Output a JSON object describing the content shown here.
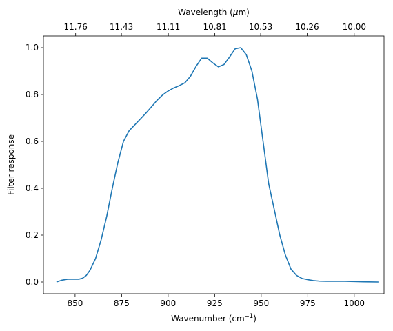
{
  "chart_data": {
    "type": "line",
    "xlabel": "Wavenumber (cm",
    "xlabel_sup": "−1",
    "xlabel_end": ")",
    "ylabel": "Filter response",
    "top_label": "Wavelength (",
    "top_label_mu": "μ",
    "top_label_end": "m)",
    "xlim": [
      833,
      1016
    ],
    "ylim": [
      -0.05,
      1.05
    ],
    "x_ticks": [
      850,
      875,
      900,
      925,
      950,
      975,
      1000
    ],
    "x_tick_labels": [
      "850",
      "875",
      "900",
      "925",
      "950",
      "975",
      "1000"
    ],
    "y_ticks": [
      0.0,
      0.2,
      0.4,
      0.6,
      0.8,
      1.0
    ],
    "y_tick_labels": [
      "0.0",
      "0.2",
      "0.4",
      "0.6",
      "0.8",
      "1.0"
    ],
    "top_ticks": [
      850.3,
      874.9,
      900.1,
      925.1,
      949.7,
      974.7,
      1000.0
    ],
    "top_tick_labels": [
      "11.76",
      "11.43",
      "11.11",
      "10.81",
      "10.53",
      "10.26",
      "10.00"
    ],
    "grid": false,
    "series": [
      {
        "color": "#1f77b4",
        "x": [
          840,
          843,
          846,
          849,
          852,
          854,
          856,
          858,
          861,
          864,
          867,
          870,
          873,
          876,
          879,
          882,
          885,
          888,
          891,
          894,
          897,
          900,
          903,
          906,
          909,
          912,
          915,
          918,
          921,
          924,
          927,
          930,
          933,
          936,
          939,
          942,
          945,
          948,
          951,
          954,
          957,
          960,
          963,
          966,
          969,
          972,
          975,
          978,
          981,
          985,
          990,
          995,
          1000,
          1005,
          1013
        ],
        "y": [
          0.0,
          0.008,
          0.012,
          0.012,
          0.012,
          0.016,
          0.028,
          0.05,
          0.1,
          0.18,
          0.28,
          0.4,
          0.51,
          0.6,
          0.645,
          0.67,
          0.695,
          0.72,
          0.747,
          0.775,
          0.798,
          0.815,
          0.828,
          0.838,
          0.85,
          0.878,
          0.92,
          0.955,
          0.955,
          0.935,
          0.918,
          0.928,
          0.96,
          0.995,
          1.0,
          0.97,
          0.9,
          0.78,
          0.6,
          0.42,
          0.31,
          0.2,
          0.115,
          0.055,
          0.028,
          0.015,
          0.01,
          0.006,
          0.004,
          0.003,
          0.003,
          0.003,
          0.002,
          0.001,
          0.0
        ]
      }
    ]
  }
}
